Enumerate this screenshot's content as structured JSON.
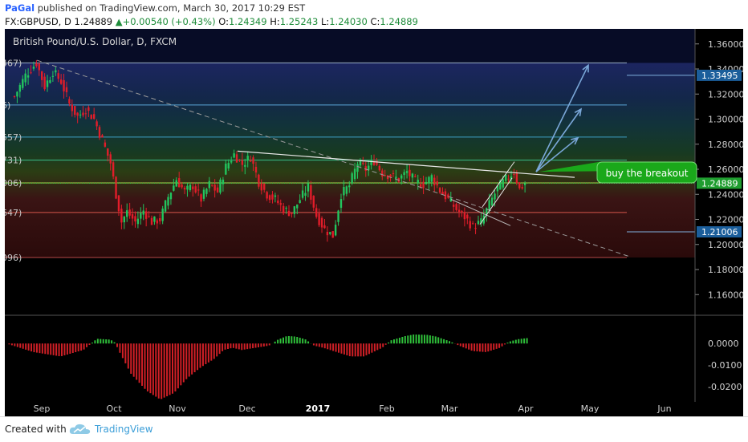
{
  "header": {
    "user": "PaGal",
    "published_text": "published on TradingView.com, March 30, 2017 10:29 EST",
    "symbol": "FX:GBPUSD, D",
    "last": "1.24889",
    "change": "+0.00540 (+0.43%)",
    "o_label": "O:",
    "o": "1.24349",
    "h_label": "H:",
    "h": "1.25243",
    "l_label": "L:",
    "l": "1.24030",
    "c_label": "C:",
    "c": "1.24889"
  },
  "chart_title": "British Pound/U.S. Dollar, D, FXCM",
  "annotation": "buy the breakout",
  "footer": {
    "created_with": "Created with",
    "brand": "TradingView"
  },
  "colors": {
    "up": "#22c55e",
    "down": "#e11d2a",
    "trend": "#ffffff",
    "callout": "#1aa81a",
    "arrows": "#7aa7d8"
  },
  "chart_data": {
    "type": "candlestick",
    "title": "British Pound/U.S. Dollar, D, FXCM",
    "x_tick_labels": [
      "Sep",
      "Oct",
      "Nov",
      "Dec",
      "2017",
      "Feb",
      "Mar",
      "Apr",
      "May",
      "Jun"
    ],
    "price_ticks": [
      "1.36000",
      "1.34000",
      "1.32000",
      "1.30000",
      "1.28000",
      "1.26000",
      "1.24000",
      "1.22000",
      "1.20000",
      "1.18000",
      "1.16000"
    ],
    "ylim": [
      1.148,
      1.372
    ],
    "fib_levels": [
      {
        "value": 1.3449,
        "label": "467)"
      },
      {
        "value": 1.3113,
        "label": "6)"
      },
      {
        "value": 1.2857,
        "label": "557)"
      },
      {
        "value": 1.2673,
        "label": "731)"
      },
      {
        "value": 1.2491,
        "label": "006)"
      },
      {
        "value": 1.2255,
        "label": "647)"
      },
      {
        "value": 1.1896,
        "label": "096)"
      }
    ],
    "badges": [
      {
        "value": 1.33495,
        "label": "1.33495",
        "color": "#1b5e9b"
      },
      {
        "value": 1.24889,
        "label": "1.24889",
        "color": "#1f9d2f"
      },
      {
        "value": 1.21006,
        "label": "1.21006",
        "color": "#1b5e9b"
      }
    ],
    "indicator": {
      "name": "histogram",
      "ticks": [
        "0.0000",
        "-0.0100",
        "-0.0200"
      ],
      "ylim": [
        -0.026,
        0.012
      ]
    },
    "price_path": [
      [
        0,
        1.318
      ],
      [
        4,
        1.335
      ],
      [
        8,
        1.345
      ],
      [
        11,
        1.326
      ],
      [
        14,
        1.338
      ],
      [
        17,
        1.33
      ],
      [
        20,
        1.312
      ],
      [
        23,
        1.302
      ],
      [
        26,
        1.308
      ],
      [
        29,
        1.3
      ],
      [
        32,
        1.283
      ],
      [
        35,
        1.265
      ],
      [
        37,
        1.24
      ],
      [
        39,
        1.218
      ],
      [
        41,
        1.226
      ],
      [
        44,
        1.218
      ],
      [
        47,
        1.227
      ],
      [
        50,
        1.218
      ],
      [
        53,
        1.22
      ],
      [
        56,
        1.238
      ],
      [
        59,
        1.252
      ],
      [
        62,
        1.242
      ],
      [
        65,
        1.247
      ],
      [
        68,
        1.236
      ],
      [
        71,
        1.248
      ],
      [
        74,
        1.242
      ],
      [
        77,
        1.262
      ],
      [
        80,
        1.272
      ],
      [
        83,
        1.264
      ],
      [
        86,
        1.27
      ],
      [
        89,
        1.25
      ],
      [
        92,
        1.24
      ],
      [
        95,
        1.236
      ],
      [
        98,
        1.228
      ],
      [
        101,
        1.225
      ],
      [
        104,
        1.236
      ],
      [
        107,
        1.246
      ],
      [
        110,
        1.223
      ],
      [
        113,
        1.212
      ],
      [
        116,
        1.207
      ],
      [
        119,
        1.24
      ],
      [
        122,
        1.247
      ],
      [
        125,
        1.265
      ],
      [
        128,
        1.26
      ],
      [
        131,
        1.267
      ],
      [
        134,
        1.257
      ],
      [
        137,
        1.255
      ],
      [
        140,
        1.252
      ],
      [
        143,
        1.258
      ],
      [
        146,
        1.25
      ],
      [
        149,
        1.248
      ],
      [
        152,
        1.254
      ],
      [
        155,
        1.243
      ],
      [
        158,
        1.236
      ],
      [
        161,
        1.228
      ],
      [
        164,
        1.222
      ],
      [
        167,
        1.214
      ],
      [
        170,
        1.218
      ],
      [
        173,
        1.232
      ],
      [
        176,
        1.245
      ],
      [
        179,
        1.252
      ],
      [
        182,
        1.258
      ],
      [
        184,
        1.244
      ],
      [
        186,
        1.249
      ]
    ]
  }
}
